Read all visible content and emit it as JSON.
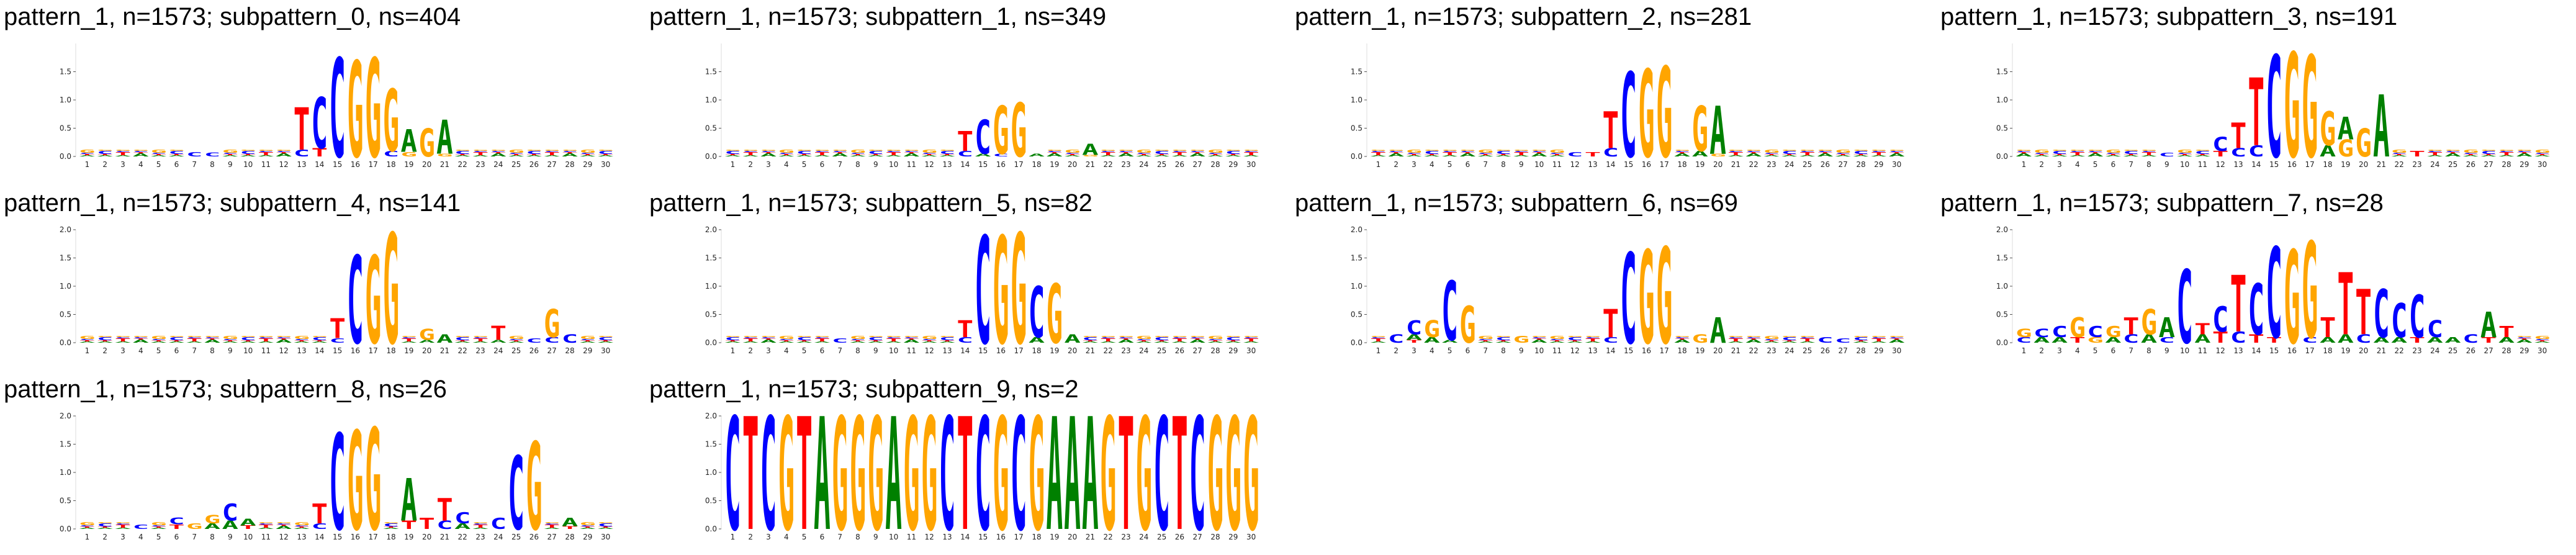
{
  "colors": {
    "A": "#008000",
    "C": "#0000ff",
    "G": "#ffa500",
    "T": "#ff0000"
  },
  "chart_data": [
    {
      "type": "logo",
      "title": "pattern_1, n=1573; subpattern_0, ns=404",
      "ylim": [
        0,
        2
      ],
      "yticks": [
        "0.0",
        "0.5",
        "1.0",
        "1.5"
      ],
      "positions": 30,
      "peaks": {
        "13": [
          [
            "T",
            0.75
          ],
          [
            "C",
            0.12
          ]
        ],
        "14": [
          [
            "C",
            0.9
          ],
          [
            "T",
            0.15
          ]
        ],
        "15": [
          [
            "C",
            1.75
          ]
        ],
        "16": [
          [
            "G",
            1.7
          ]
        ],
        "17": [
          [
            "G",
            1.75
          ]
        ],
        "18": [
          [
            "G",
            1.1
          ],
          [
            "C",
            0.1
          ]
        ],
        "19": [
          [
            "A",
            0.4
          ],
          [
            "G",
            0.08
          ]
        ],
        "20": [
          [
            "G",
            0.5
          ]
        ],
        "21": [
          [
            "A",
            0.6
          ],
          [
            "G",
            0.05
          ]
        ],
        "7": [
          [
            "C",
            0.08
          ]
        ],
        "8": [
          [
            "C",
            0.07
          ]
        ]
      }
    },
    {
      "type": "logo",
      "title": "pattern_1, n=1573; subpattern_1, ns=349",
      "ylim": [
        0,
        2
      ],
      "yticks": [
        "0.0",
        "0.5",
        "1.0",
        "1.5"
      ],
      "positions": 30,
      "peaks": {
        "14": [
          [
            "T",
            0.35
          ],
          [
            "C",
            0.1
          ]
        ],
        "15": [
          [
            "C",
            0.6
          ],
          [
            "A",
            0.05
          ]
        ],
        "16": [
          [
            "G",
            0.85
          ],
          [
            "C",
            0.05
          ]
        ],
        "17": [
          [
            "G",
            0.95
          ]
        ],
        "18": [
          [
            "A",
            0.05
          ]
        ],
        "21": [
          [
            "A",
            0.2
          ],
          [
            "G",
            0.03
          ]
        ]
      }
    },
    {
      "type": "logo",
      "title": "pattern_1, n=1573; subpattern_2, ns=281",
      "ylim": [
        0,
        2
      ],
      "yticks": [
        "0.0",
        "0.5",
        "1.0",
        "1.5"
      ],
      "positions": 30,
      "peaks": {
        "14": [
          [
            "T",
            0.65
          ],
          [
            "C",
            0.15
          ]
        ],
        "15": [
          [
            "C",
            1.5
          ]
        ],
        "16": [
          [
            "G",
            1.55
          ]
        ],
        "17": [
          [
            "G",
            1.6
          ]
        ],
        "19": [
          [
            "G",
            0.8
          ],
          [
            "A",
            0.1
          ]
        ],
        "20": [
          [
            "A",
            0.85
          ],
          [
            "G",
            0.05
          ]
        ],
        "12": [
          [
            "C",
            0.08
          ]
        ],
        "13": [
          [
            "T",
            0.08
          ]
        ]
      }
    },
    {
      "type": "logo",
      "title": "pattern_1, n=1573; subpattern_3, ns=191",
      "ylim": [
        0,
        2
      ],
      "yticks": [
        "0.0",
        "0.5",
        "1.0",
        "1.5"
      ],
      "positions": 30,
      "peaks": {
        "12": [
          [
            "C",
            0.25
          ],
          [
            "T",
            0.1
          ]
        ],
        "13": [
          [
            "T",
            0.45
          ],
          [
            "C",
            0.15
          ]
        ],
        "14": [
          [
            "T",
            1.2
          ],
          [
            "C",
            0.2
          ]
        ],
        "15": [
          [
            "C",
            1.8
          ]
        ],
        "16": [
          [
            "G",
            1.85
          ]
        ],
        "17": [
          [
            "G",
            1.8
          ]
        ],
        "18": [
          [
            "G",
            0.6
          ],
          [
            "A",
            0.2
          ]
        ],
        "19": [
          [
            "A",
            0.4
          ],
          [
            "G",
            0.3
          ]
        ],
        "20": [
          [
            "G",
            0.5
          ]
        ],
        "21": [
          [
            "A",
            1.1
          ]
        ],
        "23": [
          [
            "T",
            0.1
          ]
        ],
        "9": [
          [
            "C",
            0.06
          ]
        ]
      }
    },
    {
      "type": "logo",
      "title": "pattern_1, n=1573; subpattern_4, ns=141",
      "ylim": [
        0,
        2
      ],
      "yticks": [
        "0.0",
        "0.5",
        "1.0",
        "1.5",
        "2.0"
      ],
      "positions": 30,
      "peaks": {
        "15": [
          [
            "T",
            0.35
          ],
          [
            "C",
            0.08
          ]
        ],
        "16": [
          [
            "C",
            1.55
          ]
        ],
        "17": [
          [
            "G",
            1.55
          ]
        ],
        "18": [
          [
            "G",
            1.95
          ]
        ],
        "20": [
          [
            "G",
            0.2
          ],
          [
            "A",
            0.05
          ]
        ],
        "21": [
          [
            "A",
            0.15
          ]
        ],
        "24": [
          [
            "T",
            0.25
          ],
          [
            "A",
            0.05
          ]
        ],
        "27": [
          [
            "G",
            0.5
          ],
          [
            "C",
            0.1
          ]
        ],
        "28": [
          [
            "C",
            0.15
          ]
        ],
        "26": [
          [
            "C",
            0.08
          ]
        ]
      }
    },
    {
      "type": "logo",
      "title": "pattern_1, n=1573; subpattern_5, ns=82",
      "ylim": [
        0,
        2
      ],
      "yticks": [
        "0.0",
        "0.5",
        "1.0",
        "1.5",
        "2.0"
      ],
      "positions": 30,
      "peaks": {
        "14": [
          [
            "T",
            0.3
          ],
          [
            "C",
            0.1
          ]
        ],
        "15": [
          [
            "C",
            1.9
          ]
        ],
        "16": [
          [
            "G",
            1.9
          ]
        ],
        "17": [
          [
            "G",
            1.95
          ]
        ],
        "18": [
          [
            "C",
            0.9
          ],
          [
            "A",
            0.1
          ]
        ],
        "19": [
          [
            "G",
            1.05
          ]
        ],
        "20": [
          [
            "A",
            0.15
          ]
        ],
        "7": [
          [
            "C",
            0.08
          ]
        ]
      }
    },
    {
      "type": "logo",
      "title": "pattern_1, n=1573; subpattern_6, ns=69",
      "ylim": [
        0,
        2
      ],
      "yticks": [
        "0.0",
        "0.5",
        "1.0",
        "1.5",
        "2.0"
      ],
      "positions": 30,
      "peaks": {
        "2": [
          [
            "C",
            0.15
          ]
        ],
        "3": [
          [
            "C",
            0.25
          ],
          [
            "A",
            0.1
          ],
          [
            "T",
            0.05
          ]
        ],
        "4": [
          [
            "G",
            0.3
          ],
          [
            "A",
            0.1
          ]
        ],
        "5": [
          [
            "C",
            1.05
          ],
          [
            "A",
            0.05
          ]
        ],
        "6": [
          [
            "G",
            0.65
          ]
        ],
        "9": [
          [
            "G",
            0.12
          ]
        ],
        "14": [
          [
            "T",
            0.5
          ],
          [
            "C",
            0.1
          ]
        ],
        "15": [
          [
            "C",
            1.6
          ]
        ],
        "16": [
          [
            "G",
            1.65
          ]
        ],
        "17": [
          [
            "G",
            1.7
          ]
        ],
        "19": [
          [
            "G",
            0.15
          ]
        ],
        "20": [
          [
            "A",
            0.45
          ]
        ],
        "26": [
          [
            "C",
            0.1
          ]
        ],
        "27": [
          [
            "C",
            0.08
          ]
        ]
      }
    },
    {
      "type": "logo",
      "title": "pattern_1, n=1573; subpattern_7, ns=28",
      "ylim": [
        0,
        2
      ],
      "yticks": [
        "0.0",
        "0.5",
        "1.0",
        "1.5",
        "2.0"
      ],
      "positions": 30,
      "peaks": {
        "1": [
          [
            "G",
            0.15
          ],
          [
            "C",
            0.1
          ]
        ],
        "2": [
          [
            "C",
            0.15
          ],
          [
            "A",
            0.1
          ]
        ],
        "3": [
          [
            "C",
            0.2
          ],
          [
            "A",
            0.1
          ]
        ],
        "4": [
          [
            "G",
            0.35
          ],
          [
            "T",
            0.1
          ]
        ],
        "5": [
          [
            "C",
            0.2
          ],
          [
            "G",
            0.1
          ]
        ],
        "6": [
          [
            "G",
            0.2
          ],
          [
            "A",
            0.1
          ]
        ],
        "7": [
          [
            "T",
            0.3
          ],
          [
            "C",
            0.15
          ]
        ],
        "8": [
          [
            "G",
            0.45
          ],
          [
            "A",
            0.15
          ]
        ],
        "9": [
          [
            "A",
            0.35
          ],
          [
            "C",
            0.1
          ]
        ],
        "10": [
          [
            "C",
            1.3
          ]
        ],
        "11": [
          [
            "T",
            0.2
          ],
          [
            "A",
            0.15
          ]
        ],
        "12": [
          [
            "C",
            0.45
          ],
          [
            "T",
            0.2
          ]
        ],
        "13": [
          [
            "T",
            1.0
          ],
          [
            "C",
            0.2
          ]
        ],
        "14": [
          [
            "C",
            0.9
          ],
          [
            "T",
            0.15
          ]
        ],
        "15": [
          [
            "C",
            1.6
          ],
          [
            "T",
            0.1
          ]
        ],
        "16": [
          [
            "G",
            1.65
          ]
        ],
        "17": [
          [
            "G",
            1.7
          ],
          [
            "C",
            0.1
          ]
        ],
        "18": [
          [
            "T",
            0.35
          ],
          [
            "A",
            0.1
          ]
        ],
        "19": [
          [
            "T",
            1.1
          ],
          [
            "A",
            0.15
          ]
        ],
        "20": [
          [
            "T",
            0.8
          ],
          [
            "C",
            0.15
          ]
        ],
        "21": [
          [
            "C",
            0.85
          ],
          [
            "A",
            0.1
          ]
        ],
        "22": [
          [
            "C",
            0.6
          ],
          [
            "A",
            0.1
          ]
        ],
        "23": [
          [
            "C",
            0.75
          ],
          [
            "T",
            0.1
          ]
        ],
        "24": [
          [
            "C",
            0.3
          ],
          [
            "A",
            0.1
          ]
        ],
        "25": [
          [
            "A",
            0.1
          ]
        ],
        "26": [
          [
            "C",
            0.15
          ]
        ],
        "27": [
          [
            "A",
            0.45
          ],
          [
            "T",
            0.1
          ]
        ],
        "28": [
          [
            "T",
            0.2
          ],
          [
            "A",
            0.1
          ]
        ]
      }
    },
    {
      "type": "logo",
      "title": "pattern_1, n=1573; subpattern_8, ns=26",
      "ylim": [
        0,
        2
      ],
      "yticks": [
        "0.0",
        "0.5",
        "1.0",
        "1.5",
        "2.0"
      ],
      "positions": 30,
      "peaks": {
        "4": [
          [
            "C",
            0.08
          ]
        ],
        "6": [
          [
            "C",
            0.12
          ],
          [
            "T",
            0.08
          ]
        ],
        "7": [
          [
            "G",
            0.1
          ]
        ],
        "8": [
          [
            "G",
            0.15
          ],
          [
            "A",
            0.1
          ]
        ],
        "9": [
          [
            "C",
            0.3
          ],
          [
            "A",
            0.15
          ]
        ],
        "10": [
          [
            "A",
            0.12
          ],
          [
            "T",
            0.06
          ]
        ],
        "14": [
          [
            "T",
            0.35
          ],
          [
            "C",
            0.1
          ]
        ],
        "15": [
          [
            "C",
            1.7
          ]
        ],
        "16": [
          [
            "G",
            1.75
          ]
        ],
        "17": [
          [
            "G",
            1.8
          ]
        ],
        "19": [
          [
            "A",
            0.75
          ],
          [
            "T",
            0.15
          ]
        ],
        "20": [
          [
            "T",
            0.2
          ]
        ],
        "21": [
          [
            "T",
            0.4
          ],
          [
            "C",
            0.15
          ]
        ],
        "22": [
          [
            "C",
            0.2
          ],
          [
            "A",
            0.1
          ]
        ],
        "24": [
          [
            "C",
            0.2
          ]
        ],
        "25": [
          [
            "C",
            1.3
          ]
        ],
        "26": [
          [
            "G",
            1.55
          ]
        ],
        "28": [
          [
            "A",
            0.15
          ],
          [
            "T",
            0.05
          ]
        ]
      }
    },
    {
      "type": "logo",
      "title": "pattern_1, n=1573; subpattern_9, ns=2",
      "ylim": [
        0,
        2
      ],
      "yticks": [
        "0.0",
        "0.5",
        "1.0",
        "1.5",
        "2.0"
      ],
      "positions": 30,
      "sequence": "CTCGTAGGGAGGCTCGCGAAAGTGCTCGGG"
    }
  ]
}
